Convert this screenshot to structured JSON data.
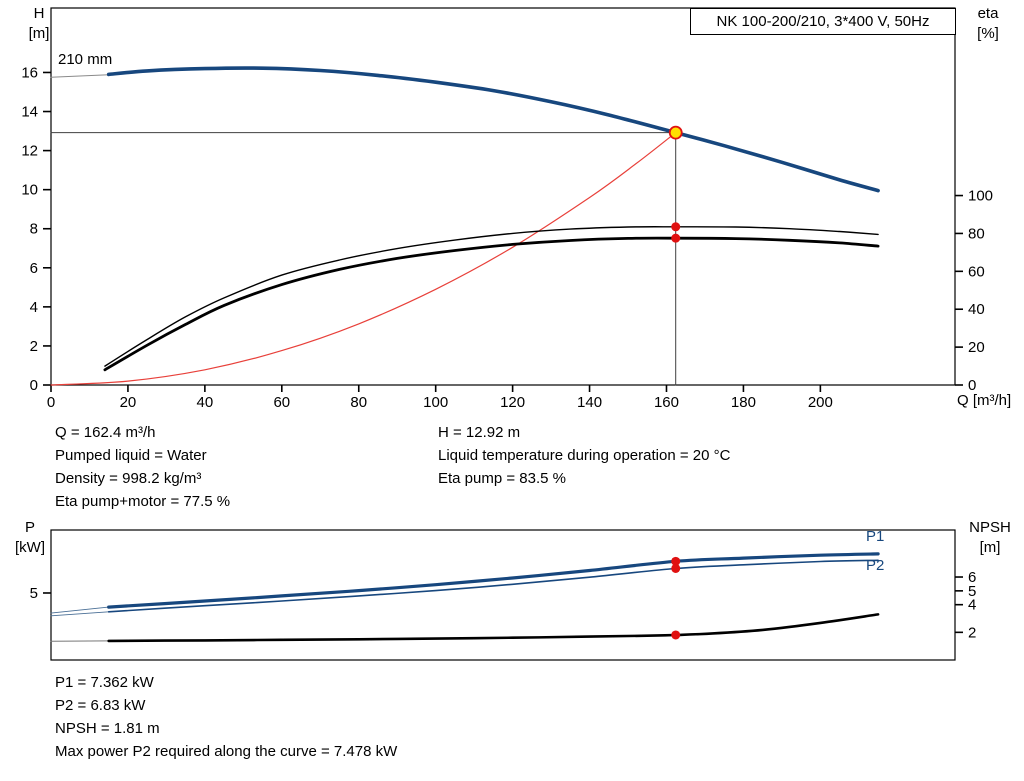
{
  "labels": {
    "h_axis": {
      "line1": "H",
      "line2": "[m]"
    },
    "eta_axis": {
      "line1": "eta",
      "line2": "[%]"
    },
    "q_axis": "Q [m³/h]",
    "p_axis": {
      "line1": "P",
      "line2": "[kW]"
    },
    "npsh_axis": {
      "line1": "NPSH",
      "line2": "[m]"
    },
    "p1": "P1",
    "p2": "P2"
  },
  "annotations_top_left": [
    "Q = 162.4 m³/h",
    "Pumped liquid = Water",
    "Density = 998.2 kg/m³",
    "Eta pump+motor = 77.5 %"
  ],
  "annotations_top_right": [
    "H = 12.92 m",
    "Liquid temperature during operation = 20 °C",
    "Eta pump = 83.5 %"
  ],
  "annotations_bottom": [
    "P1 = 7.362 kW",
    "P2 = 6.83 kW",
    "NPSH = 1.81 m",
    "Max power P2 required along the curve = 7.478 kW"
  ],
  "colors": {
    "curve_blue": "#17477e",
    "curve_black": "#000000",
    "curve_red": "#e8403a",
    "dot_red": "#e01111",
    "duty_yellow": "#ffdf00",
    "guide_gray": "#404040"
  },
  "chart_data": [
    {
      "id": "hq-eta-chart",
      "type": "line",
      "title": "NK 100-200/210, 3*400 V, 50Hz",
      "impeller": "210 mm",
      "x_axis": {
        "label": "Q [m³/h]",
        "range": [
          0,
          235
        ],
        "ticks": [
          0,
          20,
          40,
          60,
          80,
          100,
          120,
          140,
          160,
          180,
          200
        ]
      },
      "y_left": {
        "label": "H [m]",
        "range": [
          0,
          19.3
        ],
        "ticks": [
          0,
          2,
          4,
          6,
          8,
          10,
          12,
          14,
          16
        ]
      },
      "y_right": {
        "label": "eta [%]",
        "range": [
          0,
          199
        ],
        "ticks": [
          0,
          20,
          40,
          60,
          80,
          100
        ]
      },
      "grid": false,
      "duty_point": {
        "q_m3h": 162.4,
        "h_m": 12.92,
        "eta_pump_pct": 83.5,
        "eta_pump_motor_pct": 77.5
      },
      "series": [
        {
          "name": "duty-vertical-guide",
          "axis": "left",
          "color": "#404040",
          "width": 1,
          "smooth": false,
          "points": [
            [
              162.4,
              0
            ],
            [
              162.4,
              12.92
            ]
          ]
        },
        {
          "name": "duty-horizontal-guide",
          "axis": "left",
          "color": "#404040",
          "width": 1,
          "smooth": false,
          "points": [
            [
              0,
              12.92
            ],
            [
              162.4,
              12.92
            ]
          ]
        },
        {
          "name": "system-curve",
          "axis": "left",
          "color": "#e8403a",
          "width": 1.2,
          "points": [
            [
              0,
              0
            ],
            [
              20,
              0.2
            ],
            [
              40,
              0.78
            ],
            [
              60,
              1.76
            ],
            [
              80,
              3.13
            ],
            [
              100,
              4.9
            ],
            [
              120,
              7.05
            ],
            [
              140,
              9.6
            ],
            [
              152,
              11.32
            ],
            [
              162.4,
              12.92
            ]
          ]
        },
        {
          "name": "h-curve-leader",
          "axis": "left",
          "color": "#8a8a8a",
          "width": 1,
          "smooth": false,
          "points": [
            [
              0,
              15.75
            ],
            [
              15,
              15.88
            ]
          ]
        },
        {
          "name": "eta-pump-curve",
          "axis": "right",
          "color": "#000000",
          "width": 1.4,
          "points": [
            [
              14,
              10
            ],
            [
              25,
              24
            ],
            [
              35,
              36
            ],
            [
              45,
              46
            ],
            [
              60,
              58
            ],
            [
              75,
              66
            ],
            [
              90,
              72
            ],
            [
              105,
              76.5
            ],
            [
              120,
              80
            ],
            [
              135,
              82.3
            ],
            [
              150,
              83.4
            ],
            [
              162.4,
              83.5
            ],
            [
              178,
              83.4
            ],
            [
              192,
              82.5
            ],
            [
              205,
              81
            ],
            [
              215,
              79.5
            ]
          ]
        },
        {
          "name": "eta-pump-motor-curve",
          "axis": "right",
          "color": "#000000",
          "width": 2.8,
          "points": [
            [
              14,
              8
            ],
            [
              25,
              21
            ],
            [
              35,
              32
            ],
            [
              45,
              42
            ],
            [
              60,
              53
            ],
            [
              75,
              61
            ],
            [
              90,
              66.8
            ],
            [
              105,
              71
            ],
            [
              120,
              74.2
            ],
            [
              135,
              76.3
            ],
            [
              150,
              77.4
            ],
            [
              162.4,
              77.5
            ],
            [
              178,
              77.3
            ],
            [
              192,
              76.4
            ],
            [
              205,
              75
            ],
            [
              215,
              73.3
            ]
          ]
        },
        {
          "name": "h-curve-210mm",
          "axis": "left",
          "color": "#17477e",
          "width": 3.6,
          "points": [
            [
              15,
              15.9
            ],
            [
              25,
              16.08
            ],
            [
              40,
              16.2
            ],
            [
              55,
              16.22
            ],
            [
              70,
              16.1
            ],
            [
              85,
              15.85
            ],
            [
              100,
              15.5
            ],
            [
              115,
              15.07
            ],
            [
              130,
              14.5
            ],
            [
              145,
              13.82
            ],
            [
              162.4,
              12.92
            ],
            [
              175,
              12.25
            ],
            [
              190,
              11.4
            ],
            [
              205,
              10.5
            ],
            [
              215,
              9.95
            ]
          ]
        }
      ],
      "markers": [
        {
          "name": "eta-pump-motor-dot",
          "x": 162.4,
          "y": 77.5,
          "axis": "right",
          "r": 4.5,
          "fill": "#e01111"
        },
        {
          "name": "eta-pump-dot",
          "x": 162.4,
          "y": 83.5,
          "axis": "right",
          "r": 4.5,
          "fill": "#e01111"
        },
        {
          "name": "duty-point",
          "x": 162.4,
          "y": 12.92,
          "axis": "left",
          "r": 6,
          "fill": "#ffdf00",
          "stroke": "#e01111",
          "stroke_width": 1.8
        }
      ]
    },
    {
      "id": "power-npsh-chart",
      "type": "line",
      "x_axis": {
        "label": "Q [m³/h]",
        "range": [
          0,
          235
        ],
        "ticks": []
      },
      "y_left": {
        "label": "P [kW]",
        "range": [
          0,
          9.7
        ],
        "ticks": [
          5
        ]
      },
      "y_right": {
        "label": "NPSH [m]",
        "range": [
          0,
          9.4
        ],
        "ticks": [
          2,
          4,
          5,
          6
        ]
      },
      "grid": false,
      "duty_point": {
        "q_m3h": 162.4,
        "p1_kw": 7.362,
        "p2_kw": 6.83,
        "npsh_m": 1.81,
        "max_p2_along_curve_kw": 7.478
      },
      "series": [
        {
          "name": "p1-leader",
          "axis": "left",
          "color": "#4a6f96",
          "width": 0.9,
          "smooth": false,
          "points": [
            [
              0,
              3.5
            ],
            [
              15,
              3.95
            ]
          ]
        },
        {
          "name": "p2-leader",
          "axis": "left",
          "color": "#4a6f96",
          "width": 0.9,
          "smooth": false,
          "points": [
            [
              0,
              3.3
            ],
            [
              15,
              3.6
            ]
          ]
        },
        {
          "name": "p2-curve",
          "axis": "left",
          "color": "#17477e",
          "width": 1.6,
          "points": [
            [
              15,
              3.6
            ],
            [
              40,
              4.05
            ],
            [
              60,
              4.4
            ],
            [
              80,
              4.78
            ],
            [
              100,
              5.18
            ],
            [
              120,
              5.65
            ],
            [
              140,
              6.18
            ],
            [
              162.4,
              6.83
            ],
            [
              180,
              7.1
            ],
            [
              200,
              7.35
            ],
            [
              215,
              7.44
            ]
          ]
        },
        {
          "name": "p1-curve",
          "axis": "left",
          "color": "#17477e",
          "width": 3.2,
          "points": [
            [
              15,
              3.95
            ],
            [
              40,
              4.4
            ],
            [
              60,
              4.78
            ],
            [
              80,
              5.18
            ],
            [
              100,
              5.62
            ],
            [
              120,
              6.12
            ],
            [
              140,
              6.68
            ],
            [
              162.4,
              7.362
            ],
            [
              180,
              7.6
            ],
            [
              200,
              7.82
            ],
            [
              215,
              7.92
            ]
          ]
        },
        {
          "name": "npsh-leader",
          "axis": "right",
          "color": "#777777",
          "width": 1,
          "smooth": false,
          "points": [
            [
              0,
              1.35
            ],
            [
              15,
              1.38
            ]
          ]
        },
        {
          "name": "npsh-curve",
          "axis": "right",
          "color": "#000000",
          "width": 2.6,
          "points": [
            [
              15,
              1.38
            ],
            [
              40,
              1.42
            ],
            [
              60,
              1.46
            ],
            [
              80,
              1.5
            ],
            [
              100,
              1.55
            ],
            [
              120,
              1.61
            ],
            [
              140,
              1.69
            ],
            [
              155,
              1.76
            ],
            [
              162.4,
              1.81
            ],
            [
              172,
              1.92
            ],
            [
              185,
              2.18
            ],
            [
              200,
              2.68
            ],
            [
              215,
              3.3
            ]
          ]
        }
      ],
      "markers": [
        {
          "name": "p1-dot",
          "x": 162.4,
          "y": 7.362,
          "axis": "left",
          "r": 4.5,
          "fill": "#e01111"
        },
        {
          "name": "p2-dot",
          "x": 162.4,
          "y": 6.83,
          "axis": "left",
          "r": 4.5,
          "fill": "#e01111"
        },
        {
          "name": "npsh-dot",
          "x": 162.4,
          "y": 1.81,
          "axis": "right",
          "r": 4.5,
          "fill": "#e01111"
        }
      ]
    }
  ]
}
